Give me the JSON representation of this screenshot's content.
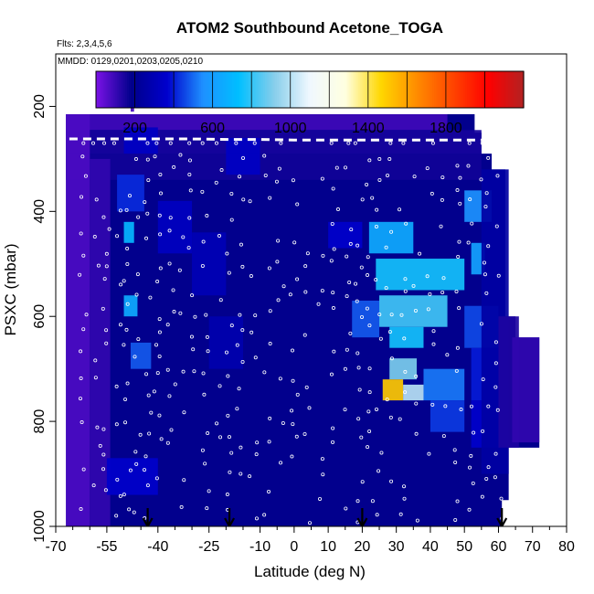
{
  "chart_data": {
    "type": "heatmap",
    "title": "ATOM2 Southbound Acetone_TOGA",
    "flights_label": "Flts: 2,3,4,5,6",
    "dates_label": "MMDD: 0129,0201,0203,0205,0210",
    "xlabel": "Latitude (deg N)",
    "ylabel": "PSXC (mbar)",
    "xlim": [
      -70,
      80
    ],
    "ylim": [
      1000,
      100
    ],
    "y_reversed": true,
    "x_ticks": [
      -70,
      -55,
      -40,
      -25,
      -10,
      0,
      10,
      20,
      30,
      40,
      50,
      60,
      70,
      80
    ],
    "y_ticks": [
      200,
      400,
      600,
      800,
      1000
    ],
    "colorbar": {
      "range": [
        0,
        2200
      ],
      "ticks": [
        200,
        600,
        1000,
        1400,
        1800
      ],
      "colors": [
        "#7b12e6",
        "#00008b",
        "#0000cd",
        "#1e90ff",
        "#00bfff",
        "#87ceeb",
        "#f0f8ff",
        "#ffffe0",
        "#ffd700",
        "#ff8c00",
        "#ff4500",
        "#ff0000",
        "#b22222"
      ]
    },
    "background_value": 180,
    "cells": [
      {
        "lat": [
          -67,
          45
        ],
        "p": [
          215,
          245
        ],
        "v": 90
      },
      {
        "lat": [
          -67,
          55
        ],
        "p": [
          245,
          290
        ],
        "v": 150
      },
      {
        "lat": [
          -67,
          55
        ],
        "p": [
          290,
          340
        ],
        "v": 160
      },
      {
        "lat": [
          -67,
          -60
        ],
        "p": [
          215,
          1000
        ],
        "v": 70
      },
      {
        "lat": [
          -60,
          -54
        ],
        "p": [
          300,
          1000
        ],
        "v": 110
      },
      {
        "lat": [
          -50,
          -47
        ],
        "p": [
          420,
          460
        ],
        "v": 700
      },
      {
        "lat": [
          -50,
          -46
        ],
        "p": [
          560,
          600
        ],
        "v": 650
      },
      {
        "lat": [
          -48,
          -42
        ],
        "p": [
          650,
          700
        ],
        "v": 480
      },
      {
        "lat": [
          -55,
          -40
        ],
        "p": [
          870,
          940
        ],
        "v": 360
      },
      {
        "lat": [
          -52,
          -44
        ],
        "p": [
          330,
          400
        ],
        "v": 420
      },
      {
        "lat": [
          -40,
          -30
        ],
        "p": [
          380,
          480
        ],
        "v": 330
      },
      {
        "lat": [
          -30,
          -20
        ],
        "p": [
          440,
          560
        ],
        "v": 300
      },
      {
        "lat": [
          -25,
          -15
        ],
        "p": [
          600,
          700
        ],
        "v": 280
      },
      {
        "lat": [
          -20,
          -10
        ],
        "p": [
          260,
          330
        ],
        "v": 340
      },
      {
        "lat": [
          10,
          20
        ],
        "p": [
          420,
          470
        ],
        "v": 360
      },
      {
        "lat": [
          17,
          25
        ],
        "p": [
          570,
          640
        ],
        "v": 480
      },
      {
        "lat": [
          22,
          35
        ],
        "p": [
          420,
          480
        ],
        "v": 650
      },
      {
        "lat": [
          24,
          50
        ],
        "p": [
          490,
          550
        ],
        "v": 760
      },
      {
        "lat": [
          25,
          45
        ],
        "p": [
          560,
          620
        ],
        "v": 820
      },
      {
        "lat": [
          28,
          38
        ],
        "p": [
          620,
          660
        ],
        "v": 760
      },
      {
        "lat": [
          28,
          36
        ],
        "p": [
          680,
          720
        ],
        "v": 900
      },
      {
        "lat": [
          26,
          32
        ],
        "p": [
          720,
          760
        ],
        "v": 1500
      },
      {
        "lat": [
          32,
          38
        ],
        "p": [
          730,
          760
        ],
        "v": 1000
      },
      {
        "lat": [
          38,
          50
        ],
        "p": [
          700,
          760
        ],
        "v": 520
      },
      {
        "lat": [
          40,
          50
        ],
        "p": [
          760,
          820
        ],
        "v": 440
      },
      {
        "lat": [
          52,
          56
        ],
        "p": [
          460,
          520
        ],
        "v": 620
      },
      {
        "lat": [
          50,
          58
        ],
        "p": [
          360,
          420
        ],
        "v": 560
      },
      {
        "lat": [
          50,
          60
        ],
        "p": [
          580,
          660
        ],
        "v": 460
      },
      {
        "lat": [
          52,
          62
        ],
        "p": [
          660,
          760
        ],
        "v": 400
      },
      {
        "lat": [
          52,
          62
        ],
        "p": [
          760,
          850
        ],
        "v": 360
      },
      {
        "lat": [
          55,
          63
        ],
        "p": [
          320,
          900
        ],
        "v": 250
      },
      {
        "lat": [
          60,
          66
        ],
        "p": [
          600,
          850
        ],
        "v": 140
      },
      {
        "lat": [
          64,
          72
        ],
        "p": [
          640,
          840
        ],
        "v": 110
      },
      {
        "lat": [
          -50,
          -40
        ],
        "p": [
          240,
          290
        ],
        "v": 340
      },
      {
        "lat": [
          -48,
          -47
        ],
        "p": [
          160,
          210
        ],
        "v": 80
      }
    ],
    "flight_track": [
      [
        -66,
        262
      ],
      [
        -62,
        262
      ],
      [
        -48,
        262
      ],
      [
        -43,
        262
      ],
      [
        -30,
        262
      ],
      [
        -18,
        263
      ],
      [
        -10,
        263
      ],
      [
        0,
        264
      ],
      [
        10,
        264
      ],
      [
        20,
        264
      ],
      [
        30,
        264
      ],
      [
        40,
        264
      ],
      [
        50,
        264
      ],
      [
        55,
        264
      ]
    ],
    "markers_lat": [
      -43,
      -19,
      20,
      61
    ]
  }
}
